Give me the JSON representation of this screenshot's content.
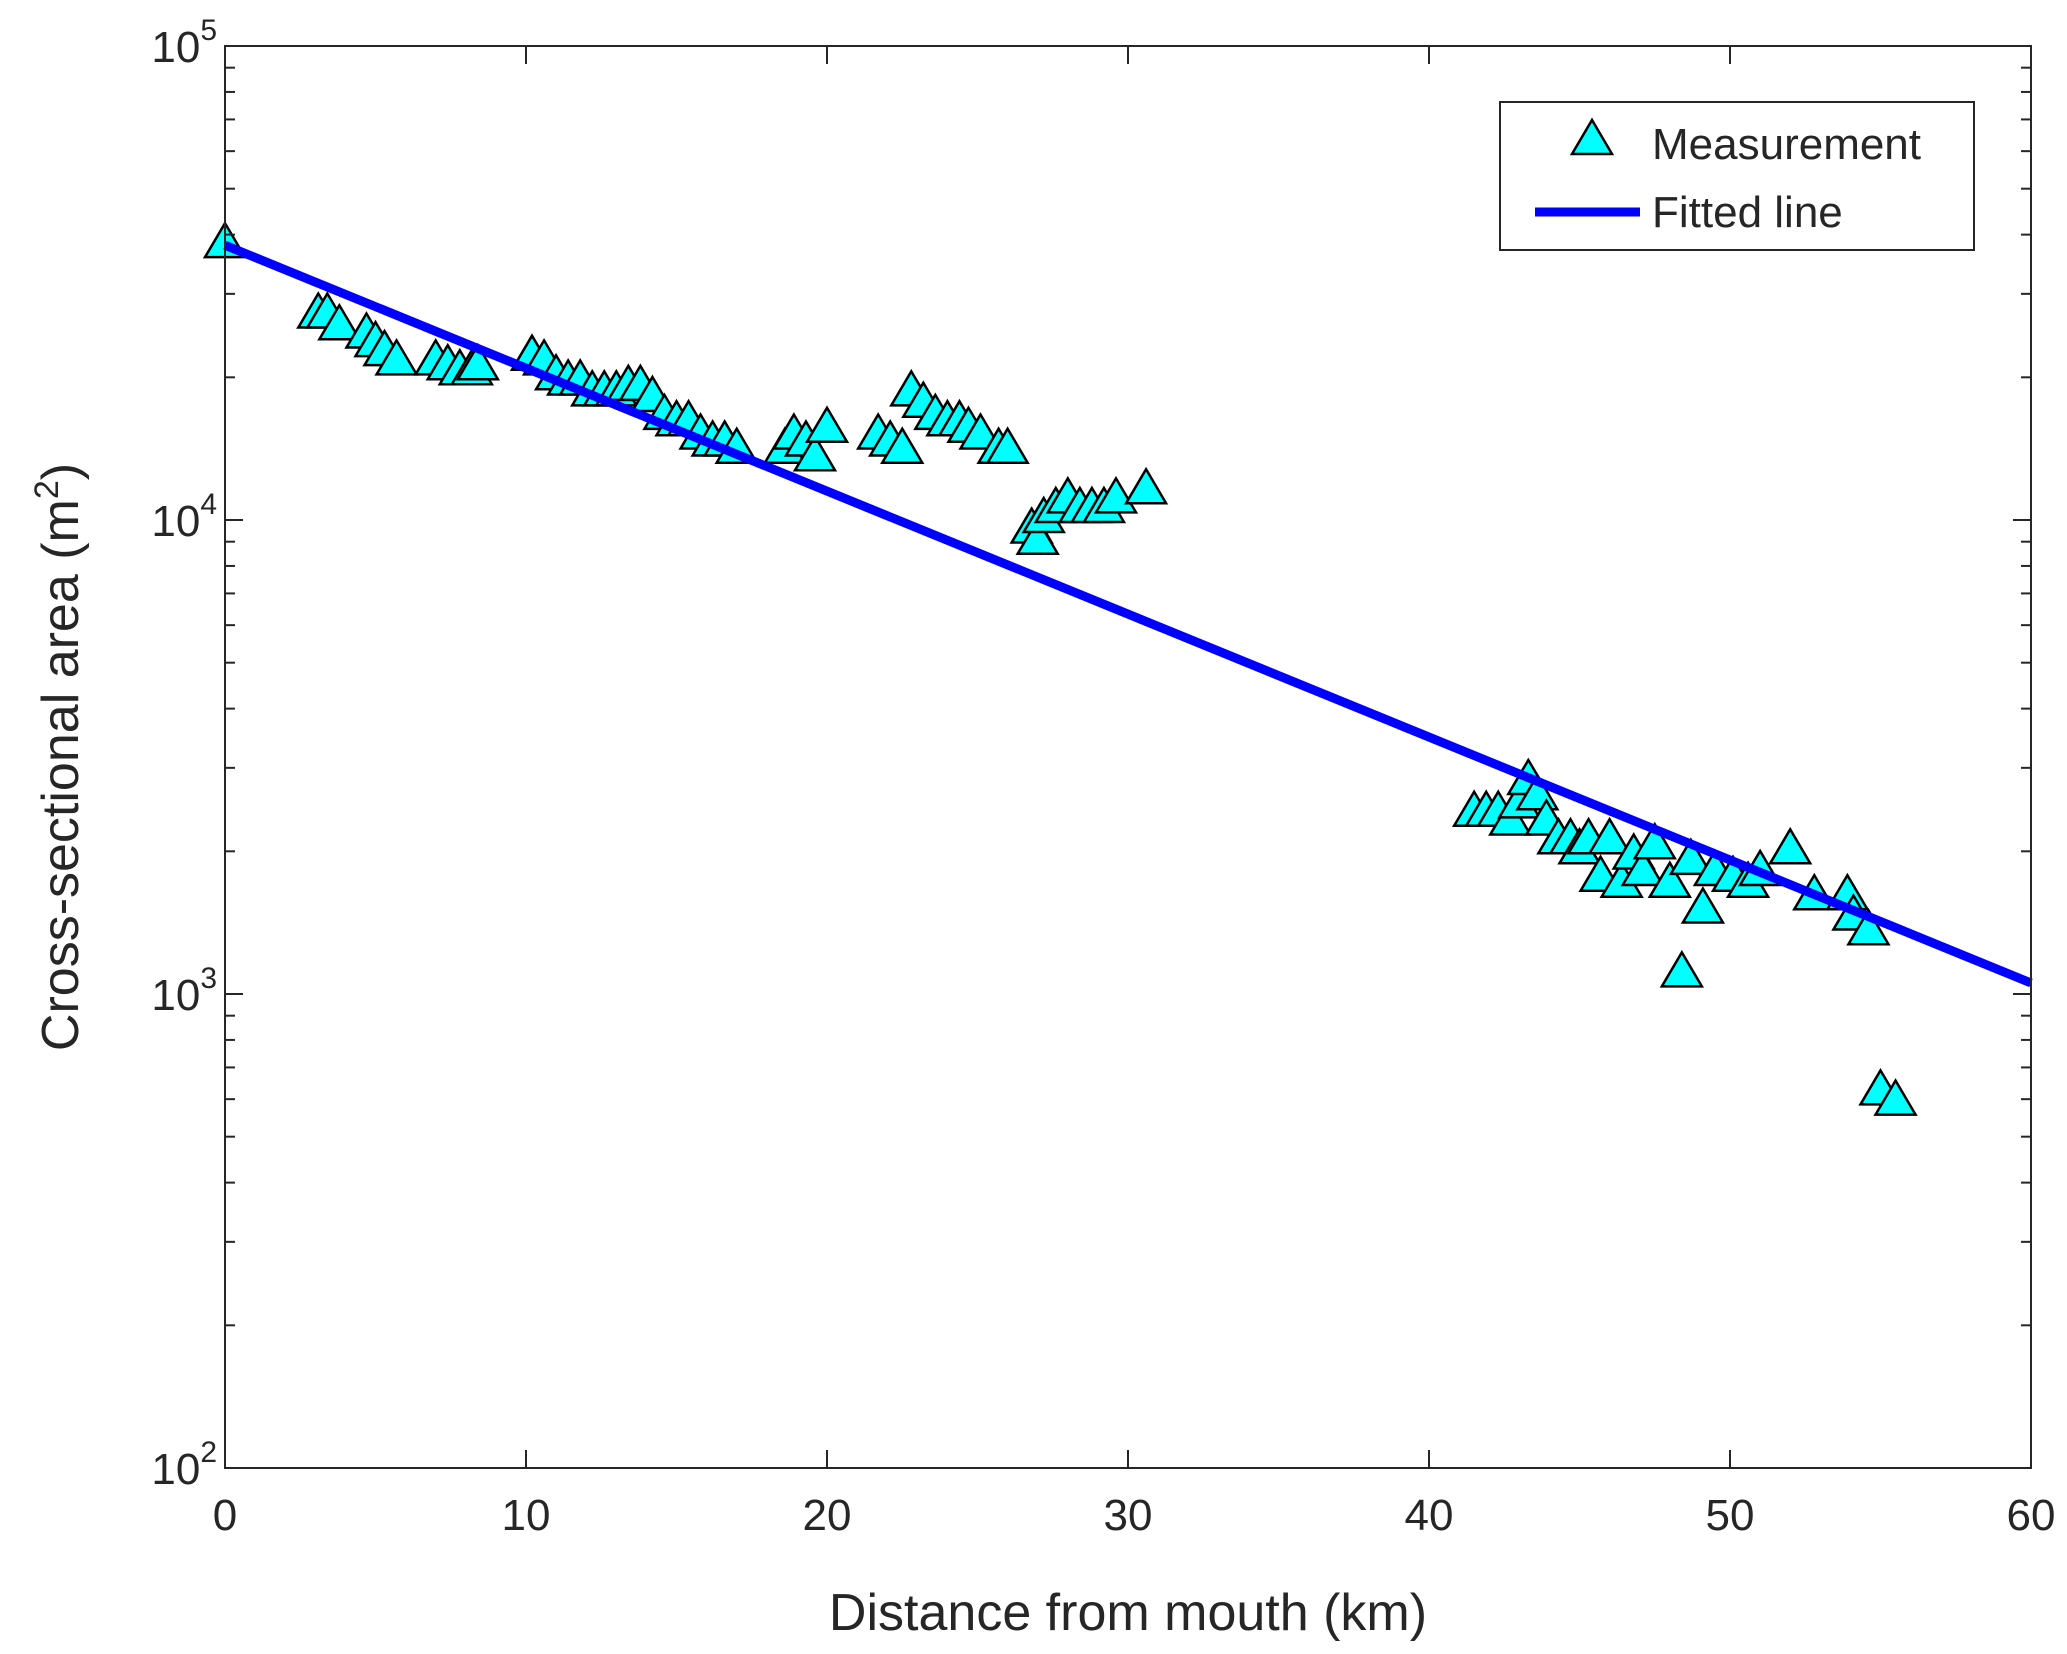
{
  "chart_data": {
    "type": "scatter",
    "title": "",
    "xlabel": "Distance from mouth (km)",
    "ylabel": "Cross-sectional area (m²)",
    "ylabel_base": "Cross-sectional area (m",
    "ylabel_sup": "2",
    "ylabel_end": ")",
    "xlim": [
      0,
      60
    ],
    "ylim": [
      100,
      100000
    ],
    "yscale": "log",
    "grid": false,
    "legend_position": "top-right",
    "x_ticks": [
      "0",
      "10",
      "20",
      "30",
      "40",
      "50",
      "60"
    ],
    "y_ticks": [
      {
        "base": "10",
        "exp": "2"
      },
      {
        "base": "10",
        "exp": "3"
      },
      {
        "base": "10",
        "exp": "4"
      },
      {
        "base": "10",
        "exp": "5"
      }
    ],
    "series": [
      {
        "name": "Measurement",
        "kind": "scatter",
        "marker": "triangle",
        "color": "#00FFFF",
        "edge_color": "#000000",
        "points": [
          [
            0,
            38000
          ],
          [
            3.1,
            27000
          ],
          [
            3.4,
            27000
          ],
          [
            3.8,
            25500
          ],
          [
            4.7,
            24500
          ],
          [
            5.0,
            23500
          ],
          [
            5.3,
            22500
          ],
          [
            5.7,
            21500
          ],
          [
            7.0,
            21500
          ],
          [
            7.4,
            21000
          ],
          [
            7.8,
            20500
          ],
          [
            8.2,
            20500
          ],
          [
            8.4,
            21000
          ],
          [
            10.2,
            22000
          ],
          [
            10.6,
            21500
          ],
          [
            11.0,
            20000
          ],
          [
            11.4,
            19500
          ],
          [
            11.8,
            19500
          ],
          [
            12.2,
            18500
          ],
          [
            12.6,
            18500
          ],
          [
            13.0,
            18500
          ],
          [
            13.4,
            19000
          ],
          [
            13.8,
            19000
          ],
          [
            14.2,
            18000
          ],
          [
            14.6,
            16500
          ],
          [
            15.0,
            16000
          ],
          [
            15.4,
            16000
          ],
          [
            15.8,
            15000
          ],
          [
            16.2,
            14500
          ],
          [
            16.6,
            14500
          ],
          [
            17.0,
            14000
          ],
          [
            18.6,
            14000
          ],
          [
            18.9,
            15000
          ],
          [
            19.3,
            14500
          ],
          [
            19.6,
            13500
          ],
          [
            20.0,
            15500
          ],
          [
            21.7,
            15000
          ],
          [
            22.1,
            14500
          ],
          [
            22.5,
            14000
          ],
          [
            22.8,
            18500
          ],
          [
            23.2,
            17500
          ],
          [
            23.6,
            16500
          ],
          [
            24.0,
            16000
          ],
          [
            24.4,
            16000
          ],
          [
            24.7,
            15500
          ],
          [
            25.1,
            15000
          ],
          [
            25.7,
            14000
          ],
          [
            26.0,
            14000
          ],
          [
            26.8,
            9500
          ],
          [
            27.0,
            9000
          ],
          [
            27.2,
            10000
          ],
          [
            27.6,
            10500
          ],
          [
            28.0,
            11000
          ],
          [
            28.4,
            10500
          ],
          [
            28.8,
            10500
          ],
          [
            29.2,
            10500
          ],
          [
            29.6,
            11000
          ],
          [
            30.6,
            11500
          ],
          [
            41.5,
            2400
          ],
          [
            41.9,
            2400
          ],
          [
            42.3,
            2400
          ],
          [
            42.7,
            2300
          ],
          [
            43.0,
            2500
          ],
          [
            43.3,
            2800
          ],
          [
            43.6,
            2600
          ],
          [
            43.9,
            2300
          ],
          [
            44.3,
            2100
          ],
          [
            44.7,
            2100
          ],
          [
            45.0,
            2000
          ],
          [
            45.3,
            2100
          ],
          [
            45.7,
            1750
          ],
          [
            46.0,
            2100
          ],
          [
            46.4,
            1700
          ],
          [
            46.8,
            1950
          ],
          [
            47.1,
            1800
          ],
          [
            47.5,
            2050
          ],
          [
            48.0,
            1700
          ],
          [
            48.4,
            1100
          ],
          [
            48.7,
            1900
          ],
          [
            49.1,
            1500
          ],
          [
            49.5,
            1800
          ],
          [
            50.1,
            1750
          ],
          [
            50.6,
            1700
          ],
          [
            51.0,
            1800
          ],
          [
            52.0,
            2000
          ],
          [
            52.8,
            1600
          ],
          [
            53.9,
            1600
          ],
          [
            54.1,
            1450
          ],
          [
            54.6,
            1350
          ],
          [
            55.0,
            620
          ],
          [
            55.5,
            590
          ]
        ]
      },
      {
        "name": "Fitted line",
        "kind": "line",
        "color": "#0000FF",
        "points": [
          [
            0,
            38000
          ],
          [
            60,
            1055
          ]
        ]
      }
    ]
  }
}
